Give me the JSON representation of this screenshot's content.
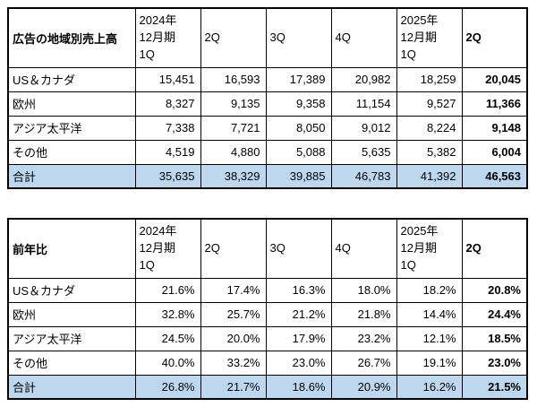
{
  "colors": {
    "header_bg": "#BDD7EE",
    "total_row_bg": "#BDD7EE",
    "border": "#000000",
    "text": "#000000"
  },
  "chart_data": [
    {
      "type": "table",
      "title": "広告の地域別売上高",
      "headers": [
        "2024年\n12月期\n1Q",
        "2Q",
        "3Q",
        "4Q",
        "2025年\n12月期\n1Q",
        "2Q"
      ],
      "rows": [
        {
          "label": "US＆カナダ",
          "values": [
            "15,451",
            "16,593",
            "17,389",
            "20,982",
            "18,259",
            "20,045"
          ]
        },
        {
          "label": "欧州",
          "values": [
            "8,327",
            "9,135",
            "9,358",
            "11,154",
            "9,527",
            "11,366"
          ]
        },
        {
          "label": "アジア太平洋",
          "values": [
            "7,338",
            "7,721",
            "8,050",
            "9,012",
            "8,224",
            "9,148"
          ]
        },
        {
          "label": "その他",
          "values": [
            "4,519",
            "4,880",
            "5,088",
            "5,635",
            "5,382",
            "6,004"
          ]
        },
        {
          "label": "合計",
          "values": [
            "35,635",
            "38,329",
            "39,885",
            "46,783",
            "41,392",
            "46,563"
          ]
        }
      ]
    },
    {
      "type": "table",
      "title": "前年比",
      "headers": [
        "2024年\n12月期\n1Q",
        "2Q",
        "3Q",
        "4Q",
        "2025年\n12月期\n1Q",
        "2Q"
      ],
      "rows": [
        {
          "label": "US＆カナダ",
          "values": [
            "21.6%",
            "17.4%",
            "16.3%",
            "18.0%",
            "18.2%",
            "20.8%"
          ]
        },
        {
          "label": "欧州",
          "values": [
            "32.8%",
            "25.7%",
            "21.2%",
            "21.8%",
            "14.4%",
            "24.4%"
          ]
        },
        {
          "label": "アジア太平洋",
          "values": [
            "24.5%",
            "20.0%",
            "17.9%",
            "23.2%",
            "12.1%",
            "18.5%"
          ]
        },
        {
          "label": "その他",
          "values": [
            "40.0%",
            "33.2%",
            "23.0%",
            "26.7%",
            "19.1%",
            "23.0%"
          ]
        },
        {
          "label": "合計",
          "values": [
            "26.8%",
            "21.7%",
            "18.6%",
            "20.9%",
            "16.2%",
            "21.5%"
          ]
        }
      ]
    }
  ]
}
